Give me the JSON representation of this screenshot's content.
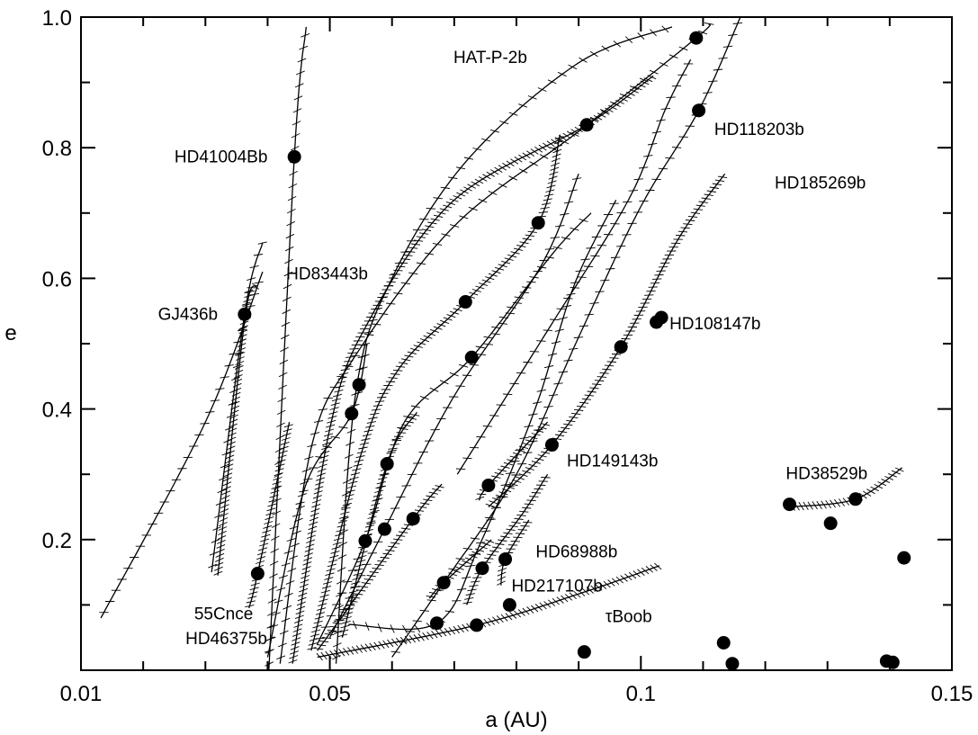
{
  "chart_data": {
    "type": "scatter",
    "title": "",
    "xlabel": "a (AU)",
    "ylabel": "e",
    "xlim": [
      0.01,
      0.15
    ],
    "ylim": [
      0.0,
      1.0
    ],
    "x_ticks": [
      {
        "value": 0.01,
        "label": "0.01"
      },
      {
        "value": 0.05,
        "label": "0.05"
      },
      {
        "value": 0.1,
        "label": "0.1"
      },
      {
        "value": 0.15,
        "label": "0.15"
      }
    ],
    "y_ticks": [
      {
        "value": 0.2,
        "label": "0.2"
      },
      {
        "value": 0.4,
        "label": "0.4"
      },
      {
        "value": 0.6,
        "label": "0.6"
      },
      {
        "value": 0.8,
        "label": "0.8"
      },
      {
        "value": 1.0,
        "label": "1.0"
      }
    ],
    "grid": false,
    "points": [
      {
        "a": 0.0443,
        "e": 0.786
      },
      {
        "a": 0.0363,
        "e": 0.545
      },
      {
        "a": 0.0384,
        "e": 0.148
      },
      {
        "a": 0.0535,
        "e": 0.393
      },
      {
        "a": 0.0547,
        "e": 0.437
      },
      {
        "a": 0.0557,
        "e": 0.198
      },
      {
        "a": 0.0592,
        "e": 0.316
      },
      {
        "a": 0.0588,
        "e": 0.216
      },
      {
        "a": 0.0634,
        "e": 0.232
      },
      {
        "a": 0.0718,
        "e": 0.564
      },
      {
        "a": 0.0728,
        "e": 0.479
      },
      {
        "a": 0.0672,
        "e": 0.072
      },
      {
        "a": 0.0683,
        "e": 0.134
      },
      {
        "a": 0.0736,
        "e": 0.069
      },
      {
        "a": 0.0745,
        "e": 0.156
      },
      {
        "a": 0.0755,
        "e": 0.283
      },
      {
        "a": 0.0782,
        "e": 0.17
      },
      {
        "a": 0.0789,
        "e": 0.1
      },
      {
        "a": 0.0835,
        "e": 0.685
      },
      {
        "a": 0.0857,
        "e": 0.345
      },
      {
        "a": 0.0913,
        "e": 0.835
      },
      {
        "a": 0.0909,
        "e": 0.028
      },
      {
        "a": 0.0968,
        "e": 0.495
      },
      {
        "a": 0.1025,
        "e": 0.533
      },
      {
        "a": 0.1033,
        "e": 0.54
      },
      {
        "a": 0.1089,
        "e": 0.968
      },
      {
        "a": 0.1093,
        "e": 0.857
      },
      {
        "a": 0.1133,
        "e": 0.042
      },
      {
        "a": 0.1147,
        "e": 0.01
      },
      {
        "a": 0.1239,
        "e": 0.254
      },
      {
        "a": 0.1305,
        "e": 0.225
      },
      {
        "a": 0.1345,
        "e": 0.262
      },
      {
        "a": 0.1395,
        "e": 0.014
      },
      {
        "a": 0.1405,
        "e": 0.012
      },
      {
        "a": 0.1423,
        "e": 0.172
      }
    ],
    "tracks": [
      {
        "points": [
          [
            0.0402,
            0.0
          ],
          [
            0.0443,
            0.786
          ],
          [
            0.0462,
            0.985
          ]
        ],
        "hatch": "sparse"
      },
      {
        "points": [
          [
            0.031,
            0.15
          ],
          [
            0.0363,
            0.545
          ],
          [
            0.0392,
            0.655
          ]
        ],
        "hatch": "sparse"
      },
      {
        "points": [
          [
            0.032,
            0.145
          ],
          [
            0.0363,
            0.535
          ],
          [
            0.0382,
            0.59
          ]
        ],
        "hatch": "dense"
      },
      {
        "points": [
          [
            0.0132,
            0.08
          ],
          [
            0.03,
            0.38
          ],
          [
            0.0392,
            0.61
          ]
        ],
        "hatch": "sparse"
      },
      {
        "points": [
          [
            0.037,
            0.095
          ],
          [
            0.0384,
            0.148
          ],
          [
            0.0435,
            0.38
          ]
        ],
        "hatch": "dense"
      },
      {
        "points": [
          [
            0.051,
            0.01
          ],
          [
            0.0541,
            0.42
          ],
          [
            0.06,
            0.6
          ],
          [
            0.072,
            0.78
          ],
          [
            0.09,
            0.93
          ],
          [
            0.105,
            0.985
          ]
        ],
        "hatch": "sparse"
      },
      {
        "points": [
          [
            0.044,
            0.01
          ],
          [
            0.05,
            0.37
          ],
          [
            0.056,
            0.53
          ],
          [
            0.07,
            0.72
          ],
          [
            0.0913,
            0.835
          ],
          [
            0.102,
            0.91
          ]
        ],
        "hatch": "dense"
      },
      {
        "points": [
          [
            0.042,
            0.01
          ],
          [
            0.047,
            0.34
          ],
          [
            0.054,
            0.48
          ],
          [
            0.07,
            0.68
          ],
          [
            0.09,
            0.825
          ],
          [
            0.1089,
            0.968
          ],
          [
            0.111,
            0.99
          ]
        ],
        "hatch": "sparse"
      },
      {
        "points": [
          [
            0.04,
            0.02
          ],
          [
            0.046,
            0.28
          ],
          [
            0.0535,
            0.393
          ],
          [
            0.056,
            0.5
          ]
        ],
        "hatch": "sparse"
      },
      {
        "points": [
          [
            0.047,
            0.03
          ],
          [
            0.055,
            0.33
          ],
          [
            0.061,
            0.46
          ],
          [
            0.0718,
            0.564
          ],
          [
            0.0835,
            0.685
          ],
          [
            0.087,
            0.82
          ]
        ],
        "hatch": "dense"
      },
      {
        "points": [
          [
            0.048,
            0.04
          ],
          [
            0.0557,
            0.198
          ],
          [
            0.062,
            0.38
          ],
          [
            0.0728,
            0.479
          ],
          [
            0.086,
            0.64
          ],
          [
            0.092,
            0.7
          ]
        ],
        "hatch": "sparse"
      },
      {
        "points": [
          [
            0.05,
            0.05
          ],
          [
            0.0588,
            0.216
          ],
          [
            0.07,
            0.42
          ],
          [
            0.084,
            0.62
          ],
          [
            0.09,
            0.76
          ]
        ],
        "hatch": "sparse"
      },
      {
        "points": [
          [
            0.052,
            0.05
          ],
          [
            0.0592,
            0.316
          ],
          [
            0.064,
            0.395
          ]
        ],
        "hatch": "dense"
      },
      {
        "points": [
          [
            0.048,
            0.03
          ],
          [
            0.0634,
            0.232
          ],
          [
            0.068,
            0.285
          ]
        ],
        "hatch": "dense"
      },
      {
        "points": [
          [
            0.053,
            0.07
          ],
          [
            0.0672,
            0.072
          ],
          [
            0.074,
            0.19
          ],
          [
            0.083,
            0.4
          ],
          [
            0.0893,
            0.59
          ],
          [
            0.096,
            0.72
          ]
        ],
        "hatch": "sparse"
      },
      {
        "points": [
          [
            0.06,
            0.02
          ],
          [
            0.0683,
            0.134
          ],
          [
            0.08,
            0.3
          ],
          [
            0.09,
            0.51
          ],
          [
            0.1,
            0.71
          ],
          [
            0.1093,
            0.857
          ],
          [
            0.116,
            1.0
          ]
        ],
        "hatch": "sparse"
      },
      {
        "points": [
          [
            0.048,
            0.02
          ],
          [
            0.0736,
            0.069
          ],
          [
            0.091,
            0.12
          ],
          [
            0.103,
            0.16
          ]
        ],
        "hatch": "dense"
      },
      {
        "points": [
          [
            0.072,
            0.1
          ],
          [
            0.0745,
            0.156
          ],
          [
            0.081,
            0.24
          ],
          [
            0.085,
            0.3
          ]
        ],
        "hatch": "dense"
      },
      {
        "points": [
          [
            0.074,
            0.26
          ],
          [
            0.0755,
            0.283
          ],
          [
            0.085,
            0.38
          ]
        ],
        "hatch": "dense"
      },
      {
        "points": [
          [
            0.0775,
            0.13
          ],
          [
            0.0782,
            0.17
          ],
          [
            0.082,
            0.23
          ]
        ],
        "hatch": "dense"
      },
      {
        "points": [
          [
            0.066,
            0.11
          ],
          [
            0.0683,
            0.134
          ],
          [
            0.076,
            0.2
          ]
        ],
        "hatch": "dense"
      },
      {
        "points": [
          [
            0.0705,
            0.3
          ],
          [
            0.085,
            0.52
          ],
          [
            0.098,
            0.72
          ],
          [
            0.104,
            0.86
          ],
          [
            0.108,
            0.935
          ]
        ],
        "hatch": "sparse"
      },
      {
        "points": [
          [
            0.0755,
            0.25
          ],
          [
            0.0857,
            0.345
          ],
          [
            0.0968,
            0.495
          ],
          [
            0.106,
            0.66
          ],
          [
            0.1135,
            0.76
          ]
        ],
        "hatch": "dense"
      },
      {
        "points": [
          [
            0.124,
            0.25
          ],
          [
            0.1345,
            0.262
          ],
          [
            0.142,
            0.31
          ]
        ],
        "hatch": "dense"
      }
    ],
    "labels": [
      {
        "text": "HAT-P-2b",
        "a": 0.0758,
        "e": 0.938,
        "anchor": "middle"
      },
      {
        "text": "HD118203b",
        "a": 0.1118,
        "e": 0.828,
        "anchor": "start"
      },
      {
        "text": "HD41004Bb",
        "a": 0.04,
        "e": 0.786,
        "anchor": "end"
      },
      {
        "text": "HD185269b",
        "a": 0.1215,
        "e": 0.746,
        "anchor": "start"
      },
      {
        "text": "HD83443b",
        "a": 0.043,
        "e": 0.607,
        "anchor": "start"
      },
      {
        "text": "GJ436b",
        "a": 0.032,
        "e": 0.545,
        "anchor": "end"
      },
      {
        "text": "HD108147b",
        "a": 0.1046,
        "e": 0.53,
        "anchor": "start"
      },
      {
        "text": "HD149143b",
        "a": 0.0881,
        "e": 0.32,
        "anchor": "start"
      },
      {
        "text": "HD38529b",
        "a": 0.1233,
        "e": 0.301,
        "anchor": "start"
      },
      {
        "text": "HD68988b",
        "a": 0.0831,
        "e": 0.181,
        "anchor": "start"
      },
      {
        "text": "HD217107b",
        "a": 0.0792,
        "e": 0.129,
        "anchor": "start"
      },
      {
        "text": "55Cnce",
        "a": 0.0282,
        "e": 0.086,
        "anchor": "start"
      },
      {
        "text": "τBoob",
        "a": 0.0943,
        "e": 0.082,
        "anchor": "start"
      },
      {
        "text": "HD46375b",
        "a": 0.0268,
        "e": 0.048,
        "anchor": "start"
      }
    ]
  }
}
